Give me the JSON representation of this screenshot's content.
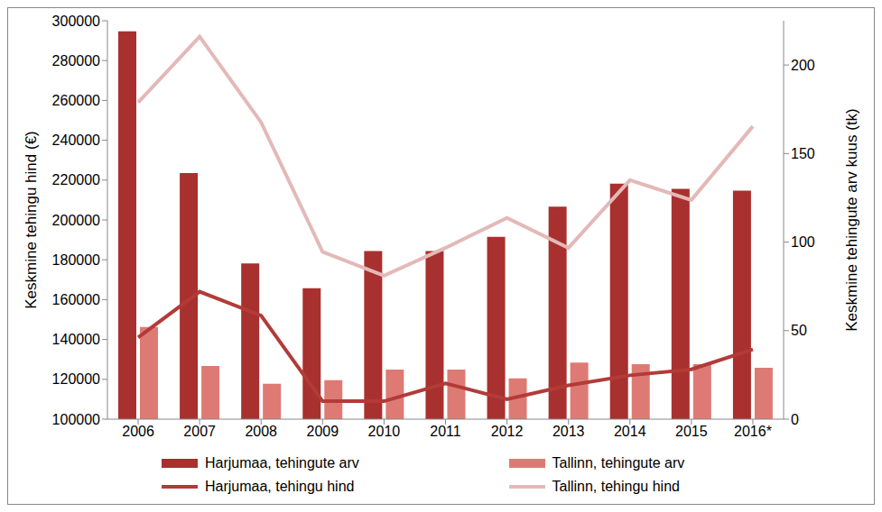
{
  "chart_data": {
    "type": "bar",
    "categories": [
      "2006",
      "2007",
      "2008",
      "2009",
      "2010",
      "2011",
      "2012",
      "2013",
      "2014",
      "2015",
      "2016*"
    ],
    "y_label": "Keskmine tehingu hind (€)",
    "y2_label": "Keskmine tehingute arv kuus (tk)",
    "ylim": [
      100000,
      300000
    ],
    "yticks": [
      100000,
      120000,
      140000,
      160000,
      180000,
      200000,
      220000,
      240000,
      260000,
      280000,
      300000
    ],
    "y2lim": [
      0,
      225
    ],
    "y2ticks": [
      0,
      50,
      100,
      150,
      200
    ],
    "grid": false,
    "legend": "bottom",
    "series": [
      {
        "name": "Harjumaa, tehingute arv",
        "type": "bar",
        "axis": "y2",
        "color": "#a8302e",
        "values": [
          219,
          139,
          88,
          74,
          95,
          95,
          103,
          120,
          133,
          130,
          129
        ]
      },
      {
        "name": "Tallinn, tehingute arv",
        "type": "bar",
        "axis": "y2",
        "color": "#de7a74",
        "values": [
          52,
          30,
          20,
          22,
          28,
          28,
          23,
          32,
          31,
          31,
          29
        ]
      },
      {
        "name": "Harjumaa, tehingu hind",
        "type": "line",
        "color": "#b23b38",
        "values": [
          141000,
          164000,
          152000,
          109000,
          109000,
          118000,
          110000,
          117000,
          122000,
          125000,
          135000
        ]
      },
      {
        "name": "Tallinn, tehingu hind",
        "type": "line",
        "color": "#e3b9b8",
        "values": [
          259000,
          292000,
          249000,
          184000,
          172000,
          186000,
          201000,
          186000,
          220000,
          210000,
          247000
        ]
      }
    ]
  }
}
